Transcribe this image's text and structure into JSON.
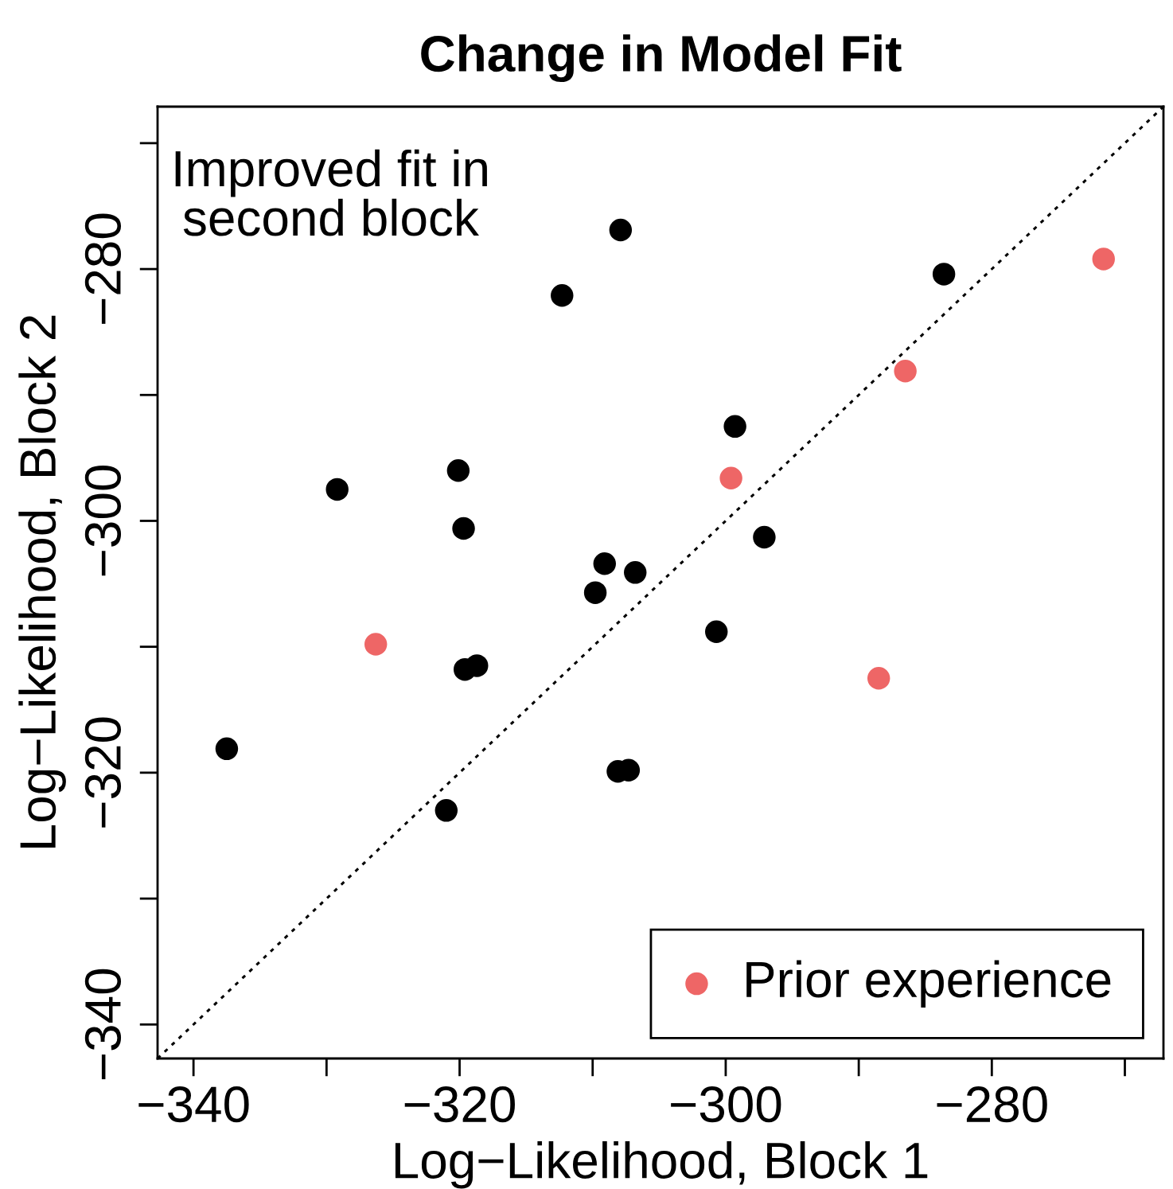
{
  "chart_data": {
    "type": "scatter",
    "title": "Change in Model Fit",
    "xlabel": "Log−Likelihood, Block 1",
    "ylabel": "Log−Likelihood, Block 2",
    "annotations": [
      "Improved fit in\nsecond block"
    ],
    "xlim": [
      -342.7,
      -267.1
    ],
    "ylim": [
      -342.7,
      -267.1
    ],
    "xticks": [
      -340,
      {
        "value": -330,
        "label": null
      },
      -320,
      {
        "value": -310,
        "label": null
      },
      -300,
      {
        "value": -290,
        "label": null
      },
      -280,
      {
        "value": -270,
        "label": null
      }
    ],
    "yticks": [
      -340,
      {
        "value": -330,
        "label": null
      },
      -320,
      {
        "value": -310,
        "label": null
      },
      -300,
      {
        "value": -290,
        "label": null
      },
      -280,
      {
        "value": -270,
        "label": null
      }
    ],
    "legend": "bottom right",
    "series": [
      {
        "color": "#000000",
        "marker": "circle",
        "x": [
          -307.9,
          -312.3,
          -283.6,
          -329.2,
          -320.1,
          -319.7,
          -299.3,
          -297.1,
          -309.1,
          -306.8,
          -309.8,
          -300.7,
          -319.6,
          -318.7,
          -337.5,
          -321.0,
          -308.1,
          -307.3
        ],
        "values": [
          -276.9,
          -282.1,
          -280.4,
          -297.5,
          -296.0,
          -300.6,
          -292.5,
          -301.3,
          -303.4,
          -304.1,
          -305.7,
          -308.8,
          -311.8,
          -311.5,
          -318.1,
          -323.0,
          -319.9,
          -319.8
        ]
      },
      {
        "name": "Prior experience",
        "color": "#ee6666",
        "marker": "circle",
        "x": [
          -271.6,
          -286.5,
          -299.6,
          -326.3,
          -288.5
        ],
        "values": [
          -279.2,
          -288.1,
          -296.6,
          -309.8,
          -312.5
        ]
      },
      {
        "type": "line",
        "color": "#000000",
        "line_style": "dotted",
        "marker": "none",
        "x": [
          -342.7,
          -267.1
        ],
        "values": [
          -342.7,
          -267.1
        ]
      }
    ]
  }
}
